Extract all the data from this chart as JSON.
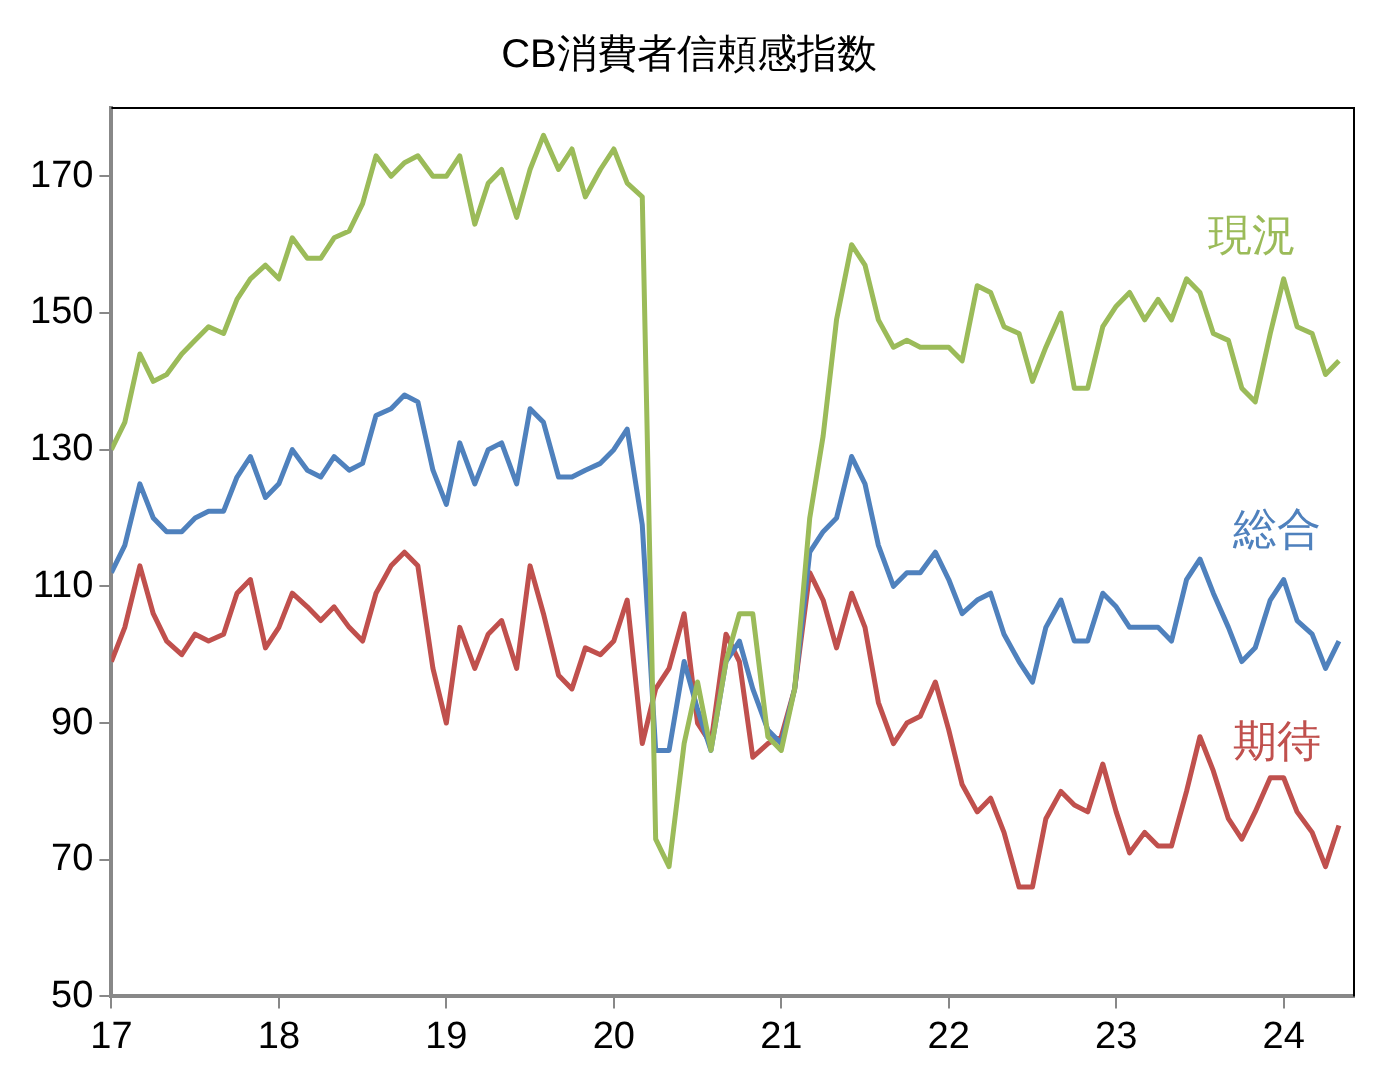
{
  "chart_data": {
    "type": "line",
    "title": "CB消費者信頼感指数",
    "x": [
      17,
      17.08,
      17.17,
      17.25,
      17.33,
      17.42,
      17.5,
      17.58,
      17.67,
      17.75,
      17.83,
      17.92,
      18,
      18.08,
      18.17,
      18.25,
      18.33,
      18.42,
      18.5,
      18.58,
      18.67,
      18.75,
      18.83,
      18.92,
      19,
      19.08,
      19.17,
      19.25,
      19.33,
      19.42,
      19.5,
      19.58,
      19.67,
      19.75,
      19.83,
      19.92,
      20,
      20.08,
      20.17,
      20.25,
      20.33,
      20.42,
      20.5,
      20.58,
      20.67,
      20.75,
      20.83,
      20.92,
      21,
      21.08,
      21.17,
      21.25,
      21.33,
      21.42,
      21.5,
      21.58,
      21.67,
      21.75,
      21.83,
      21.92,
      22,
      22.08,
      22.17,
      22.25,
      22.33,
      22.42,
      22.5,
      22.58,
      22.67,
      22.75,
      22.83,
      22.92,
      23,
      23.08,
      23.17,
      23.25,
      23.33,
      23.42,
      23.5,
      23.58,
      23.67,
      23.75,
      23.83,
      23.92,
      24,
      24.08,
      24.17,
      24.25,
      24.33
    ],
    "series": [
      {
        "name": "現況",
        "color": "#9bbb59",
        "values": [
          130,
          134,
          144,
          140,
          141,
          144,
          146,
          148,
          147,
          152,
          155,
          157,
          155,
          161,
          158,
          158,
          161,
          162,
          166,
          173,
          170,
          172,
          173,
          170,
          170,
          173,
          163,
          169,
          171,
          164,
          171,
          176,
          171,
          174,
          167,
          171,
          174,
          169,
          167,
          73,
          69,
          87,
          96,
          86,
          99,
          106,
          106,
          88,
          86,
          95,
          120,
          132,
          149,
          160,
          157,
          149,
          145,
          146,
          145,
          145,
          145,
          143,
          154,
          153,
          148,
          147,
          140,
          145,
          150,
          139,
          139,
          148,
          151,
          153,
          149,
          152,
          149,
          155,
          153,
          147,
          146,
          139,
          137,
          147,
          155,
          148,
          147,
          141,
          143
        ]
      },
      {
        "name": "総合",
        "color": "#4f81bd",
        "values": [
          112,
          116,
          125,
          120,
          118,
          118,
          120,
          121,
          121,
          126,
          129,
          123,
          125,
          130,
          127,
          126,
          129,
          127,
          128,
          135,
          136,
          138,
          137,
          127,
          122,
          131,
          125,
          130,
          131,
          125,
          136,
          134,
          126,
          126,
          127,
          128,
          130,
          133,
          119,
          86,
          86,
          99,
          92,
          86,
          99,
          102,
          95,
          89,
          87,
          95,
          115,
          118,
          120,
          129,
          125,
          116,
          110,
          112,
          112,
          115,
          111,
          106,
          108,
          109,
          103,
          99,
          96,
          104,
          108,
          102,
          102,
          109,
          107,
          104,
          104,
          104,
          102,
          111,
          114,
          109,
          104,
          99,
          101,
          108,
          111,
          105,
          103,
          98,
          102
        ]
      },
      {
        "name": "期待",
        "color": "#c0504d",
        "values": [
          99,
          104,
          113,
          106,
          102,
          100,
          103,
          102,
          103,
          109,
          111,
          101,
          104,
          109,
          107,
          105,
          107,
          104,
          102,
          109,
          113,
          115,
          113,
          98,
          90,
          104,
          98,
          103,
          105,
          98,
          113,
          106,
          97,
          95,
          101,
          100,
          102,
          108,
          87,
          95,
          98,
          106,
          90,
          87,
          103,
          99,
          85,
          87,
          88,
          95,
          112,
          108,
          101,
          109,
          104,
          93,
          87,
          90,
          91,
          96,
          89,
          81,
          77,
          79,
          74,
          66,
          66,
          76,
          80,
          78,
          77,
          84,
          77,
          71,
          74,
          72,
          72,
          80,
          88,
          83,
          76,
          73,
          77,
          82,
          82,
          77,
          74,
          69,
          75
        ]
      }
    ],
    "xlim": [
      17,
      24.42
    ],
    "xticks": [
      17,
      18,
      19,
      20,
      21,
      22,
      23,
      24
    ],
    "ylim": [
      50,
      180
    ],
    "yticks": [
      50,
      70,
      90,
      110,
      130,
      150,
      170
    ],
    "grid": false,
    "legend": false,
    "marker": "none",
    "line_style": "solid"
  }
}
